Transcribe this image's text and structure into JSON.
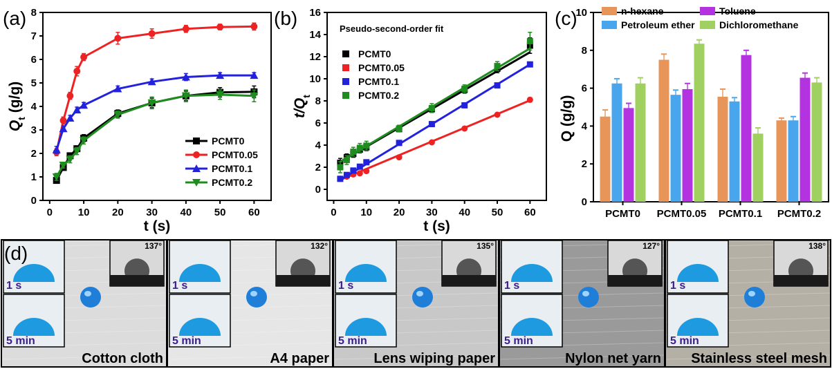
{
  "chart_data": [
    {
      "panel": "(a)",
      "type": "line",
      "xlabel": "t (s)",
      "ylabel_main": "Q",
      "ylabel_sub": "t",
      "ylabel_tail": " (g/g)",
      "xlim": [
        -2,
        65
      ],
      "ylim": [
        0,
        8
      ],
      "xticks": [
        0,
        10,
        20,
        30,
        40,
        50,
        60
      ],
      "yticks": [
        0,
        1,
        2,
        3,
        4,
        5,
        6,
        7,
        8
      ],
      "x": [
        2,
        4,
        6,
        8,
        10,
        20,
        30,
        40,
        50,
        60
      ],
      "legend_position": "bottom-right",
      "series": [
        {
          "name": "PCMT0",
          "color": "#000000",
          "marker": "square",
          "values": [
            0.85,
            1.4,
            1.9,
            2.2,
            2.65,
            3.7,
            4.15,
            4.45,
            4.6,
            4.62
          ],
          "err": [
            0.1,
            0.1,
            0.12,
            0.12,
            0.15,
            0.15,
            0.2,
            0.2,
            0.2,
            0.25
          ]
        },
        {
          "name": "PCMT0.05",
          "color": "#ee2222",
          "marker": "circle",
          "values": [
            2.05,
            3.4,
            4.45,
            5.5,
            6.1,
            6.9,
            7.1,
            7.3,
            7.38,
            7.4
          ],
          "err": [
            0.15,
            0.15,
            0.15,
            0.2,
            0.15,
            0.25,
            0.2,
            0.15,
            0.12,
            0.15
          ]
        },
        {
          "name": "PCMT0.1",
          "color": "#2222dd",
          "marker": "triangle-up",
          "values": [
            2.15,
            3.05,
            3.5,
            3.85,
            4.05,
            4.75,
            5.05,
            5.25,
            5.32,
            5.32
          ],
          "err": [
            0.15,
            0.12,
            0.12,
            0.12,
            0.12,
            0.12,
            0.12,
            0.15,
            0.12,
            0.12
          ]
        },
        {
          "name": "PCMT0.2",
          "color": "#1e8c1e",
          "marker": "triangle-down",
          "values": [
            1.0,
            1.5,
            1.75,
            2.1,
            2.55,
            3.65,
            4.15,
            4.45,
            4.5,
            4.45
          ],
          "err": [
            0.15,
            0.12,
            0.15,
            0.15,
            0.15,
            0.15,
            0.25,
            0.25,
            0.2,
            0.25
          ]
        }
      ]
    },
    {
      "panel": "(b)",
      "type": "line",
      "annotation": "Pseudo-second-order fit",
      "xlabel": "t (s)",
      "ylabel_main": "t/Q",
      "ylabel_sub": "t",
      "xlim": [
        -2,
        65
      ],
      "ylim": [
        -1,
        16
      ],
      "xticks": [
        0,
        10,
        20,
        30,
        40,
        50,
        60
      ],
      "yticks": [
        0,
        2,
        4,
        6,
        8,
        10,
        12,
        14,
        16
      ],
      "x": [
        2,
        4,
        6,
        8,
        10,
        20,
        30,
        40,
        50,
        60
      ],
      "legend_position": "top-left",
      "series": [
        {
          "name": "PCMT0",
          "color": "#000000",
          "marker": "square",
          "values": [
            2.4,
            2.9,
            3.2,
            3.6,
            3.8,
            5.45,
            7.25,
            9.0,
            10.9,
            13.0
          ],
          "fit": [
            2.5,
            12.4
          ],
          "err": [
            0.4,
            0.3,
            0.3,
            0.3,
            0.3,
            0.25,
            0.3,
            0.3,
            0.35,
            0.7
          ]
        },
        {
          "name": "PCMT0.05",
          "color": "#ee2222",
          "marker": "circle",
          "values": [
            0.95,
            1.15,
            1.35,
            1.45,
            1.65,
            2.9,
            4.25,
            5.5,
            6.75,
            8.1
          ],
          "fit": [
            0.85,
            8.05
          ],
          "err": [
            0.1,
            0.1,
            0.1,
            0.1,
            0.1,
            0.15,
            0.15,
            0.15,
            0.15,
            0.2
          ]
        },
        {
          "name": "PCMT0.1",
          "color": "#2222dd",
          "marker": "square",
          "values": [
            0.95,
            1.3,
            1.7,
            2.05,
            2.45,
            4.2,
            5.9,
            7.6,
            9.4,
            11.3
          ],
          "fit": [
            0.85,
            11.3
          ],
          "err": [
            0.1,
            0.1,
            0.12,
            0.12,
            0.12,
            0.12,
            0.15,
            0.15,
            0.2,
            0.2
          ]
        },
        {
          "name": "PCMT0.2",
          "color": "#1e8c1e",
          "marker": "square",
          "values": [
            2.0,
            2.65,
            3.4,
            3.75,
            3.95,
            5.5,
            7.35,
            9.1,
            11.15,
            13.4
          ],
          "fit": [
            2.5,
            12.75
          ],
          "err": [
            0.5,
            0.4,
            0.4,
            0.4,
            0.4,
            0.3,
            0.4,
            0.35,
            0.4,
            0.8
          ]
        }
      ]
    },
    {
      "panel": "(c)",
      "type": "bar",
      "ylabel": "Q (g/g)",
      "ylim": [
        0,
        10
      ],
      "yticks": [
        0,
        2,
        4,
        6,
        8,
        10
      ],
      "categories": [
        "PCMT0",
        "PCMT0.05",
        "PCMT0.1",
        "PCMT0.2"
      ],
      "legend_position": "top",
      "series": [
        {
          "name": "n-hexane",
          "color": "#e8955a",
          "values": [
            4.5,
            7.5,
            5.55,
            4.3
          ],
          "err": [
            0.35,
            0.3,
            0.4,
            0.12
          ]
        },
        {
          "name": "Petroleum ether",
          "color": "#4aa6ec",
          "values": [
            6.25,
            5.65,
            5.3,
            4.3
          ],
          "err": [
            0.25,
            0.25,
            0.2,
            0.2
          ]
        },
        {
          "name": "Toluene",
          "color": "#b433e0",
          "values": [
            4.95,
            5.95,
            7.75,
            6.55
          ],
          "err": [
            0.25,
            0.3,
            0.25,
            0.25
          ]
        },
        {
          "name": "Dichloromethane",
          "color": "#9fd060",
          "values": [
            6.25,
            8.35,
            3.6,
            6.3
          ],
          "err": [
            0.3,
            0.2,
            0.3,
            0.25
          ]
        }
      ]
    }
  ],
  "panel_d": {
    "letter": "(d)",
    "time_short": "1 s",
    "time_long": "5 min",
    "substrates": [
      {
        "name": "Cotton cloth",
        "angle": "137°",
        "bg": "#dcdcdc"
      },
      {
        "name": "A4 paper",
        "angle": "132°",
        "bg": "#e6e6e6"
      },
      {
        "name": "Lens wiping paper",
        "angle": "135°",
        "bg": "#c8c8c8"
      },
      {
        "name": "Nylon net yarn",
        "angle": "127°",
        "bg": "#9a9a9a"
      },
      {
        "name": "Stainless steel mesh",
        "angle": "138°",
        "bg": "#b5b0a6"
      }
    ]
  }
}
